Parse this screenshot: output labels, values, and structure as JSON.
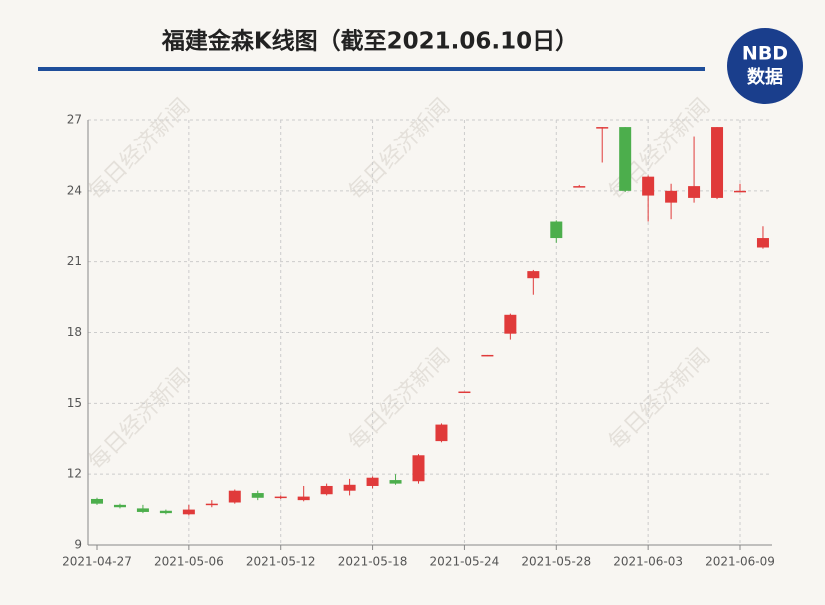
{
  "chart_data": {
    "type": "candlestick",
    "title": "福建金森K线图（截至2021.06.10日）",
    "logo": {
      "top": "NBD",
      "bottom": "数据"
    },
    "watermark": "每日经济新闻",
    "categories": [
      "2021-04-27",
      null,
      null,
      null,
      "2021-05-06",
      null,
      null,
      null,
      "2021-05-12",
      null,
      null,
      null,
      "2021-05-18",
      null,
      null,
      null,
      "2021-05-24",
      null,
      null,
      null,
      "2021-05-28",
      null,
      null,
      null,
      "2021-06-03",
      null,
      null,
      null,
      "2021-06-09",
      null
    ],
    "open": [
      10.95,
      10.7,
      10.55,
      10.45,
      10.3,
      10.7,
      10.8,
      11.2,
      11.0,
      10.9,
      11.15,
      11.3,
      11.5,
      11.75,
      11.7,
      13.4,
      15.5,
      17.05,
      17.95,
      20.3,
      22.7,
      24.2,
      26.7,
      26.7,
      23.8,
      23.5,
      23.7,
      23.7,
      24.0,
      21.6
    ],
    "close": [
      10.75,
      10.6,
      10.4,
      10.35,
      10.5,
      10.75,
      11.3,
      11.0,
      11.05,
      11.05,
      11.5,
      11.55,
      11.85,
      11.6,
      12.8,
      14.1,
      15.5,
      17.05,
      18.75,
      20.6,
      22.0,
      24.2,
      26.7,
      24.0,
      24.6,
      24.0,
      24.2,
      26.7,
      24.0,
      22.0
    ],
    "high": [
      11.0,
      10.75,
      10.7,
      10.5,
      10.7,
      10.9,
      11.35,
      11.3,
      11.1,
      11.5,
      11.6,
      11.8,
      11.9,
      12.0,
      12.85,
      14.15,
      15.5,
      17.05,
      18.8,
      20.65,
      22.75,
      24.25,
      26.7,
      26.7,
      24.65,
      24.3,
      26.3,
      26.7,
      24.3,
      22.5
    ],
    "low": [
      10.7,
      10.55,
      10.35,
      10.3,
      10.25,
      10.6,
      10.75,
      10.9,
      10.95,
      10.85,
      11.1,
      11.1,
      11.4,
      11.55,
      11.6,
      13.35,
      15.45,
      17.0,
      17.7,
      19.6,
      21.8,
      24.15,
      25.2,
      23.95,
      22.7,
      22.8,
      23.5,
      23.65,
      23.95,
      21.55
    ],
    "up_color": "#e03a3a",
    "down_color": "#4cae4c",
    "ylim": [
      9,
      27
    ],
    "yticks": [
      9,
      12,
      15,
      18,
      21,
      24,
      27
    ],
    "grid": true
  }
}
